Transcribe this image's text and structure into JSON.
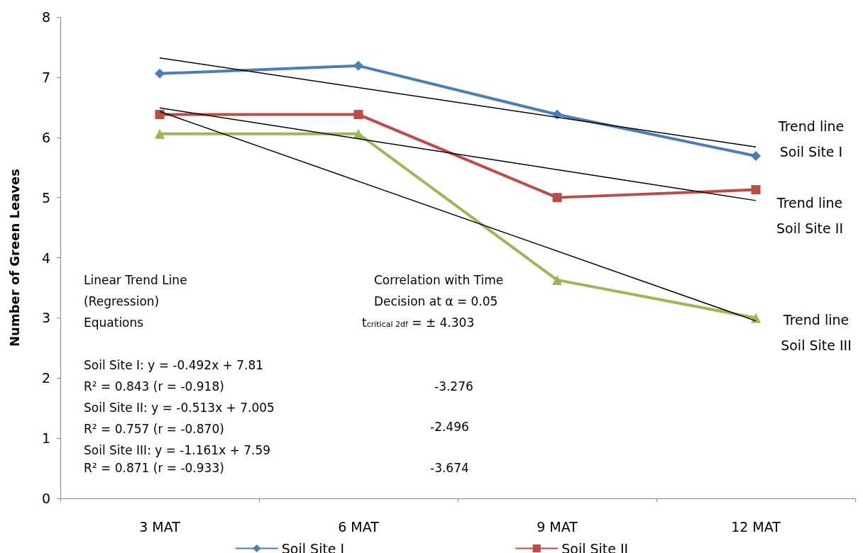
{
  "chart_data": {
    "type": "line",
    "ylabel": "Number of Green Leaves",
    "categories": [
      "3 MAT",
      "6 MAT",
      "9 MAT",
      "12 MAT"
    ],
    "series": [
      {
        "name": "Soil Site I",
        "color": "#4a7ebb",
        "marker": "diamond",
        "values": [
          7.06,
          7.19,
          6.38,
          5.69
        ]
      },
      {
        "name": "Soil Site II",
        "color": "#be4b48",
        "marker": "square",
        "values": [
          6.38,
          6.38,
          5.0,
          5.13
        ]
      },
      {
        "color": "#98b954",
        "marker": "triangle",
        "values": [
          6.06,
          6.06,
          3.63,
          3.0
        ]
      },
      {
        "color": "#000000",
        "marker": "none",
        "x": [
          "3 MAT",
          "12 MAT"
        ],
        "values": [
          7.32,
          5.84
        ]
      },
      {
        "color": "#000000",
        "marker": "none",
        "x": [
          "3 MAT",
          "12 MAT"
        ],
        "values": [
          6.49,
          4.95
        ]
      },
      {
        "color": "#000000",
        "marker": "none",
        "x": [
          "3 MAT",
          "12 MAT"
        ],
        "values": [
          6.43,
          2.95
        ]
      }
    ],
    "ylim": [
      0,
      8
    ],
    "yticks": [
      0,
      1,
      2,
      3,
      4,
      5,
      6,
      7,
      8
    ],
    "grid": false,
    "legend": "bottom",
    "annotations": [
      "Linear Trend Line",
      "(Regression)",
      "Equations",
      "Soil Site I: y = -0.492x + 7.81",
      "R² = 0.843 (r = -0.918)",
      "Soil Site II: y = -0.513x + 7.005",
      "R² = 0.757 (r = -0.870)",
      "Soil Site III: y = -1.161x + 7.59",
      "R² = 0.871 (r = -0.933)",
      "Correlation with Time",
      "Decision at α = 0.05",
      "t$_{critical 2df}$ = ± 4.303",
      "-3.276",
      "-2.496",
      "-3.674",
      "Trend line\nSoil Site I",
      "Trend line\nSoil Site II",
      "Trend line\nSoil Site III"
    ]
  }
}
